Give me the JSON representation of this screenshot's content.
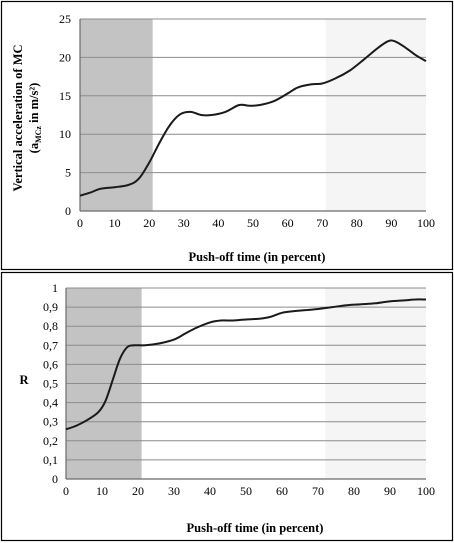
{
  "chart_data": [
    {
      "type": "line",
      "xlabel": "Push-off time (in percent)",
      "ylabel_line1": "Vertical acceleration of MC",
      "ylabel_line2_pre": "(a",
      "ylabel_line2_sub": "MCz",
      "ylabel_line2_post": " in m/s²)",
      "xlim": [
        0,
        100
      ],
      "ylim": [
        0,
        25
      ],
      "x_ticks": [
        "0",
        "10",
        "20",
        "30",
        "40",
        "50",
        "60",
        "70",
        "80",
        "90",
        "100"
      ],
      "y_ticks": [
        "0",
        "5",
        "10",
        "15",
        "20",
        "25"
      ],
      "grid": "horizontal",
      "shaded_regions": [
        {
          "from": 0,
          "to": 21,
          "color": "#c3c3c3"
        },
        {
          "from": 71,
          "to": 100,
          "color": "#f5f5f5"
        }
      ],
      "line_color": "#1a1a1a",
      "series": [
        {
          "x": [
            0,
            3,
            6,
            10,
            14,
            17,
            20,
            23,
            26,
            29,
            32,
            35,
            38,
            42,
            46,
            49,
            52,
            56,
            60,
            63,
            67,
            70,
            74,
            78,
            82,
            86,
            89,
            91,
            94,
            97,
            100
          ],
          "values": [
            2.0,
            2.4,
            2.9,
            3.1,
            3.4,
            4.2,
            6.3,
            8.9,
            11.2,
            12.6,
            12.9,
            12.5,
            12.5,
            12.9,
            13.8,
            13.7,
            13.8,
            14.3,
            15.3,
            16.1,
            16.5,
            16.6,
            17.3,
            18.3,
            19.7,
            21.2,
            22.1,
            22.1,
            21.3,
            20.3,
            19.5
          ]
        }
      ]
    },
    {
      "type": "line",
      "xlabel": "Push-off time (in percent)",
      "ylabel": "R",
      "xlim": [
        0,
        100
      ],
      "ylim": [
        0,
        1
      ],
      "x_ticks": [
        "0",
        "10",
        "20",
        "30",
        "40",
        "50",
        "60",
        "70",
        "80",
        "90",
        "100"
      ],
      "y_ticks": [
        "0",
        "0,1",
        "0,2",
        "0,3",
        "0,4",
        "0,5",
        "0,6",
        "0,7",
        "0,8",
        "0,9",
        "1"
      ],
      "grid": "horizontal",
      "shaded_regions": [
        {
          "from": 0,
          "to": 21,
          "color": "#c3c3c3"
        },
        {
          "from": 72,
          "to": 100,
          "color": "#f5f5f5"
        }
      ],
      "line_color": "#1a1a1a",
      "series": [
        {
          "x": [
            0,
            3,
            6,
            9,
            11,
            13,
            15,
            17,
            19,
            22,
            26,
            30,
            33,
            36,
            40,
            43,
            46,
            50,
            54,
            57,
            60,
            64,
            67,
            70,
            74,
            78,
            82,
            86,
            90,
            94,
            97,
            100
          ],
          "values": [
            0.26,
            0.28,
            0.31,
            0.35,
            0.41,
            0.52,
            0.63,
            0.69,
            0.7,
            0.7,
            0.71,
            0.73,
            0.76,
            0.79,
            0.82,
            0.83,
            0.83,
            0.835,
            0.84,
            0.85,
            0.87,
            0.88,
            0.885,
            0.89,
            0.9,
            0.91,
            0.915,
            0.92,
            0.93,
            0.935,
            0.94,
            0.94
          ]
        }
      ]
    }
  ]
}
